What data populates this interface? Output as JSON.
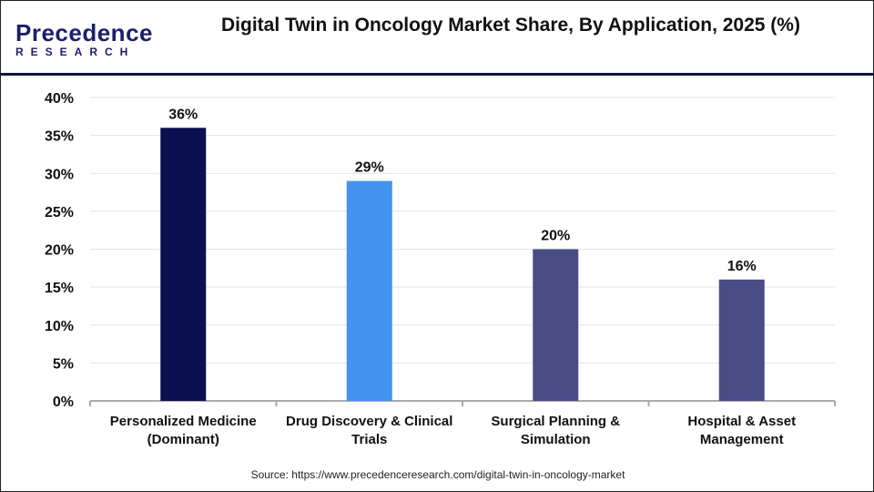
{
  "logo": {
    "line1": "Precedence",
    "line2": "RESEARCH"
  },
  "title": "Digital Twin in Oncology Market Share, By Application, 2025 (%)",
  "source": "Source: https://www.precedenceresearch.com/digital-twin-in-oncology-market",
  "chart_data": {
    "type": "bar",
    "title": "Digital Twin in Oncology Market Share, By Application, 2025 (%)",
    "categories": [
      [
        "Personalized Medicine",
        "(Dominant)"
      ],
      [
        "Drug Discovery & Clinical",
        "Trials"
      ],
      [
        "Surgical Planning &",
        "Simulation"
      ],
      [
        "Hospital & Asset",
        "Management"
      ]
    ],
    "values": [
      36,
      29,
      20,
      16
    ],
    "data_labels": [
      "36%",
      "29%",
      "20%",
      "16%"
    ],
    "colors": [
      "#0a0f50",
      "#4493f0",
      "#4a4c86",
      "#4a4c86"
    ],
    "yticks": [
      "0%",
      "5%",
      "10%",
      "15%",
      "20%",
      "25%",
      "30%",
      "35%",
      "40%"
    ],
    "ylim": [
      0,
      40
    ],
    "grid": true,
    "xlabel": "",
    "ylabel": ""
  }
}
